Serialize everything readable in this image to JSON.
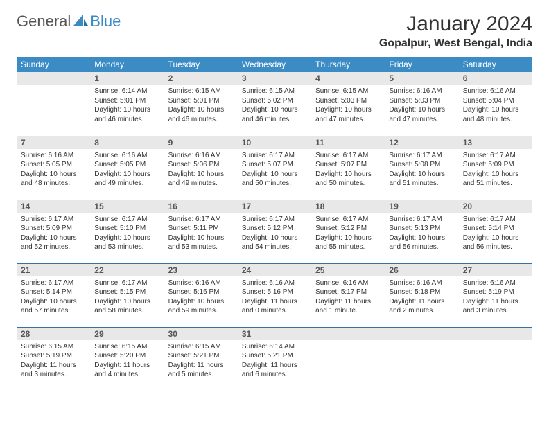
{
  "logo": {
    "general": "General",
    "blue": "Blue"
  },
  "title": "January 2024",
  "location": "Gopalpur, West Bengal, India",
  "colors": {
    "header_bg": "#3b8bc4",
    "header_text": "#ffffff",
    "daynum_bg": "#e8e8e8",
    "border": "#3b6fa0",
    "logo_gray": "#555555",
    "logo_blue": "#3b8bc4"
  },
  "weekdays": [
    "Sunday",
    "Monday",
    "Tuesday",
    "Wednesday",
    "Thursday",
    "Friday",
    "Saturday"
  ],
  "weeks": [
    [
      {
        "n": "",
        "sr": "",
        "ss": "",
        "dl": ""
      },
      {
        "n": "1",
        "sr": "6:14 AM",
        "ss": "5:01 PM",
        "dl": "10 hours and 46 minutes."
      },
      {
        "n": "2",
        "sr": "6:15 AM",
        "ss": "5:01 PM",
        "dl": "10 hours and 46 minutes."
      },
      {
        "n": "3",
        "sr": "6:15 AM",
        "ss": "5:02 PM",
        "dl": "10 hours and 46 minutes."
      },
      {
        "n": "4",
        "sr": "6:15 AM",
        "ss": "5:03 PM",
        "dl": "10 hours and 47 minutes."
      },
      {
        "n": "5",
        "sr": "6:16 AM",
        "ss": "5:03 PM",
        "dl": "10 hours and 47 minutes."
      },
      {
        "n": "6",
        "sr": "6:16 AM",
        "ss": "5:04 PM",
        "dl": "10 hours and 48 minutes."
      }
    ],
    [
      {
        "n": "7",
        "sr": "6:16 AM",
        "ss": "5:05 PM",
        "dl": "10 hours and 48 minutes."
      },
      {
        "n": "8",
        "sr": "6:16 AM",
        "ss": "5:05 PM",
        "dl": "10 hours and 49 minutes."
      },
      {
        "n": "9",
        "sr": "6:16 AM",
        "ss": "5:06 PM",
        "dl": "10 hours and 49 minutes."
      },
      {
        "n": "10",
        "sr": "6:17 AM",
        "ss": "5:07 PM",
        "dl": "10 hours and 50 minutes."
      },
      {
        "n": "11",
        "sr": "6:17 AM",
        "ss": "5:07 PM",
        "dl": "10 hours and 50 minutes."
      },
      {
        "n": "12",
        "sr": "6:17 AM",
        "ss": "5:08 PM",
        "dl": "10 hours and 51 minutes."
      },
      {
        "n": "13",
        "sr": "6:17 AM",
        "ss": "5:09 PM",
        "dl": "10 hours and 51 minutes."
      }
    ],
    [
      {
        "n": "14",
        "sr": "6:17 AM",
        "ss": "5:09 PM",
        "dl": "10 hours and 52 minutes."
      },
      {
        "n": "15",
        "sr": "6:17 AM",
        "ss": "5:10 PM",
        "dl": "10 hours and 53 minutes."
      },
      {
        "n": "16",
        "sr": "6:17 AM",
        "ss": "5:11 PM",
        "dl": "10 hours and 53 minutes."
      },
      {
        "n": "17",
        "sr": "6:17 AM",
        "ss": "5:12 PM",
        "dl": "10 hours and 54 minutes."
      },
      {
        "n": "18",
        "sr": "6:17 AM",
        "ss": "5:12 PM",
        "dl": "10 hours and 55 minutes."
      },
      {
        "n": "19",
        "sr": "6:17 AM",
        "ss": "5:13 PM",
        "dl": "10 hours and 56 minutes."
      },
      {
        "n": "20",
        "sr": "6:17 AM",
        "ss": "5:14 PM",
        "dl": "10 hours and 56 minutes."
      }
    ],
    [
      {
        "n": "21",
        "sr": "6:17 AM",
        "ss": "5:14 PM",
        "dl": "10 hours and 57 minutes."
      },
      {
        "n": "22",
        "sr": "6:17 AM",
        "ss": "5:15 PM",
        "dl": "10 hours and 58 minutes."
      },
      {
        "n": "23",
        "sr": "6:16 AM",
        "ss": "5:16 PM",
        "dl": "10 hours and 59 minutes."
      },
      {
        "n": "24",
        "sr": "6:16 AM",
        "ss": "5:16 PM",
        "dl": "11 hours and 0 minutes."
      },
      {
        "n": "25",
        "sr": "6:16 AM",
        "ss": "5:17 PM",
        "dl": "11 hours and 1 minute."
      },
      {
        "n": "26",
        "sr": "6:16 AM",
        "ss": "5:18 PM",
        "dl": "11 hours and 2 minutes."
      },
      {
        "n": "27",
        "sr": "6:16 AM",
        "ss": "5:19 PM",
        "dl": "11 hours and 3 minutes."
      }
    ],
    [
      {
        "n": "28",
        "sr": "6:15 AM",
        "ss": "5:19 PM",
        "dl": "11 hours and 3 minutes."
      },
      {
        "n": "29",
        "sr": "6:15 AM",
        "ss": "5:20 PM",
        "dl": "11 hours and 4 minutes."
      },
      {
        "n": "30",
        "sr": "6:15 AM",
        "ss": "5:21 PM",
        "dl": "11 hours and 5 minutes."
      },
      {
        "n": "31",
        "sr": "6:14 AM",
        "ss": "5:21 PM",
        "dl": "11 hours and 6 minutes."
      },
      {
        "n": "",
        "sr": "",
        "ss": "",
        "dl": ""
      },
      {
        "n": "",
        "sr": "",
        "ss": "",
        "dl": ""
      },
      {
        "n": "",
        "sr": "",
        "ss": "",
        "dl": ""
      }
    ]
  ],
  "labels": {
    "sunrise": "Sunrise: ",
    "sunset": "Sunset: ",
    "daylight": "Daylight: "
  }
}
